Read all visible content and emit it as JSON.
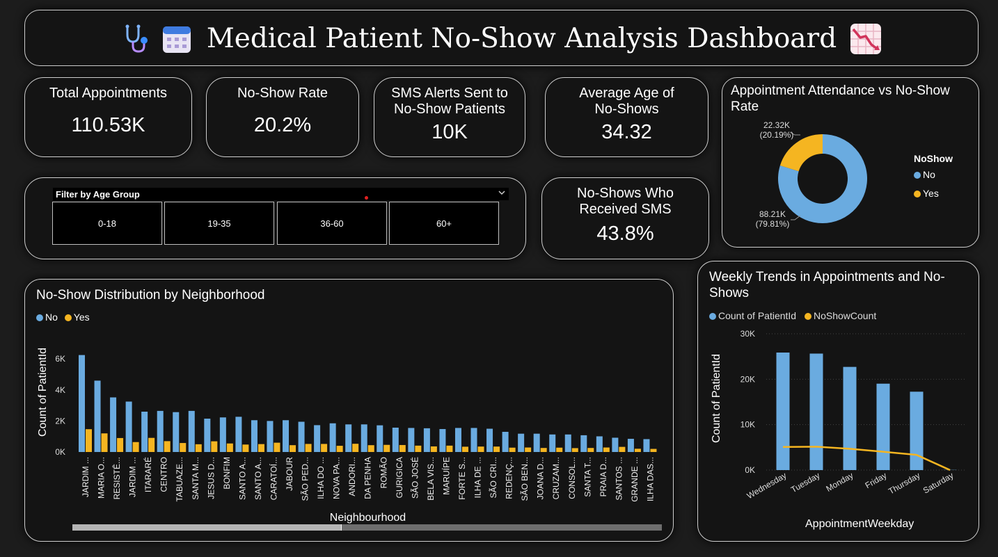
{
  "header": {
    "title": "Medical Patient No-Show Analysis Dashboard",
    "icons": [
      "stethoscope-icon",
      "calendar-icon",
      "chart-decreasing-icon"
    ]
  },
  "kpis": {
    "total_appointments": {
      "label": "Total Appointments",
      "value": "110.53K"
    },
    "no_show_rate": {
      "label": "No-Show Rate",
      "value": "20.2%"
    },
    "sms_alerts": {
      "label": "SMS Alerts Sent to No-Show Patients",
      "value": "10K"
    },
    "avg_age": {
      "label": "Average Age of No-Shows",
      "value": "34.32"
    },
    "received_sms": {
      "label": "No-Shows Who Received SMS",
      "value": "43.8%"
    }
  },
  "filter": {
    "label": "Filter by Age Group",
    "options": [
      "0-18",
      "19-35",
      "36-60",
      "60+"
    ]
  },
  "colors": {
    "no": "#6aabe0",
    "yes": "#f5b521",
    "card_bg": "#141414",
    "page_bg": "#1c1c1c"
  },
  "chart_data": [
    {
      "id": "donut",
      "type": "pie",
      "title": "Appointment Attendance vs No-Show Rate",
      "legend_title": "NoShow",
      "legend_position": "right",
      "slices": [
        {
          "name": "No",
          "value": 88.21,
          "label": "88.21K",
          "pct": "(79.81%)"
        },
        {
          "name": "Yes",
          "value": 22.32,
          "label": "22.32K",
          "pct": "(20.19%)"
        }
      ]
    },
    {
      "id": "neighborhood",
      "type": "bar",
      "title": "No-Show Distribution by Neighborhood",
      "xlabel": "Neighbourhood",
      "ylabel": "Count of PatientId",
      "legend_position": "top-left",
      "ylim": [
        0,
        6500
      ],
      "yticks": [
        {
          "value": 0,
          "label": "0K"
        },
        {
          "value": 2000,
          "label": "2K"
        },
        {
          "value": 4000,
          "label": "4K"
        },
        {
          "value": 6000,
          "label": "6K"
        }
      ],
      "categories": [
        "JARDIM ...",
        "MARIA O...",
        "RESISTÊ...",
        "JARDIM ...",
        "ITARARÉ",
        "CENTRO",
        "TABUAZE...",
        "SANTA M...",
        "JESUS D...",
        "BONFIM",
        "SANTO A...",
        "SANTO A...",
        "CARATOÍ...",
        "JABOUR",
        "SÃO PED...",
        "ILHA DO ...",
        "NOVA PA...",
        "ANDORI...",
        "DA PENHA",
        "ROMÃO",
        "GURIGICA",
        "SÃO JOSÉ",
        "BELA VIS...",
        "MARUÍPE",
        "FORTE S...",
        "ILHA DE ...",
        "SÃO CRI...",
        "REDENÇ...",
        "SÃO BEN...",
        "JOANA D...",
        "CRUZAM...",
        "CONSOL...",
        "SANTA T...",
        "PRAIA D...",
        "SANTOS ...",
        "GRANDE ...",
        "ILHA DAS..."
      ],
      "series": [
        {
          "name": "No",
          "values": [
            6250,
            4600,
            3520,
            3250,
            2600,
            2650,
            2570,
            2650,
            2150,
            2230,
            2270,
            2050,
            2000,
            2050,
            1950,
            1730,
            1850,
            1780,
            1780,
            1720,
            1570,
            1550,
            1530,
            1480,
            1550,
            1550,
            1500,
            1300,
            1180,
            1180,
            1130,
            1130,
            1080,
            1010,
            920,
            850,
            830
          ]
        },
        {
          "name": "Yes",
          "values": [
            1470,
            1200,
            900,
            640,
            910,
            700,
            580,
            500,
            690,
            550,
            480,
            510,
            600,
            440,
            520,
            520,
            400,
            530,
            440,
            460,
            450,
            410,
            360,
            410,
            340,
            350,
            350,
            280,
            290,
            260,
            280,
            250,
            260,
            290,
            330,
            210,
            200
          ]
        }
      ]
    },
    {
      "id": "weekly",
      "type": "bar",
      "title": "Weekly Trends in Appointments and No-Shows",
      "xlabel": "AppointmentWeekday",
      "ylabel": "Count of PatientId",
      "legend_position": "top-left",
      "ylim": [
        0,
        30000
      ],
      "yticks": [
        {
          "value": 0,
          "label": "0K"
        },
        {
          "value": 10000,
          "label": "10K"
        },
        {
          "value": 20000,
          "label": "20K"
        },
        {
          "value": 30000,
          "label": "30K"
        }
      ],
      "categories": [
        "Wednesday",
        "Tuesday",
        "Monday",
        "Friday",
        "Thursday",
        "Saturday"
      ],
      "series": [
        {
          "name": "Count of PatientId",
          "type": "bar",
          "values": [
            25870,
            25640,
            22710,
            19020,
            17250,
            40
          ]
        },
        {
          "name": "NoShowCount",
          "type": "line",
          "values": [
            5090,
            5150,
            4690,
            4040,
            3340,
            10
          ]
        }
      ]
    }
  ]
}
